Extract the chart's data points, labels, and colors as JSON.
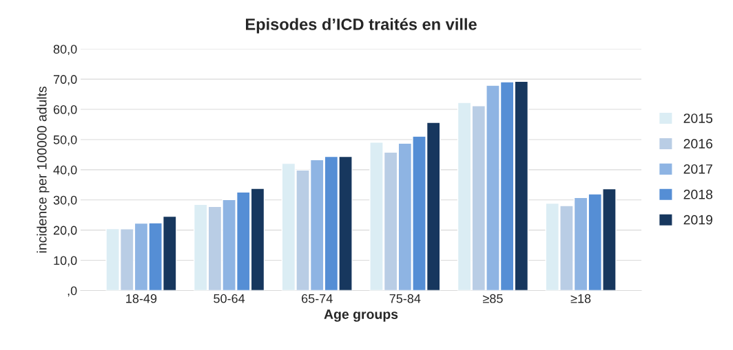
{
  "chart_data": {
    "type": "bar",
    "title": "Episodes d’ICD traités en ville",
    "xlabel": "Age groups",
    "ylabel": "incidence per 100000 adults",
    "categories": [
      "18-49",
      "50-64",
      "65-74",
      "75-84",
      "≥85",
      "≥18"
    ],
    "series": [
      {
        "name": "2015",
        "color": "#dbedf4",
        "values": [
          20.5,
          28.5,
          42.1,
          49.1,
          62.3,
          28.9
        ]
      },
      {
        "name": "2016",
        "color": "#b9cde5",
        "values": [
          20.4,
          27.8,
          39.9,
          45.8,
          61.2,
          28.1
        ]
      },
      {
        "name": "2017",
        "color": "#8eb4e3",
        "values": [
          22.3,
          30.1,
          43.3,
          48.8,
          68.0,
          30.8
        ]
      },
      {
        "name": "2018",
        "color": "#558ed5",
        "values": [
          22.4,
          32.6,
          44.4,
          51.1,
          69.1,
          32.0
        ]
      },
      {
        "name": "2019",
        "color": "#17375e",
        "values": [
          24.6,
          33.8,
          44.4,
          55.7,
          69.3,
          33.7
        ]
      }
    ],
    "ylim": [
      0,
      80
    ],
    "yticks": [
      {
        "value": 0,
        "label": ",0"
      },
      {
        "value": 10,
        "label": "10,0"
      },
      {
        "value": 20,
        "label": "20,0"
      },
      {
        "value": 30,
        "label": "30,0"
      },
      {
        "value": 40,
        "label": "40,0"
      },
      {
        "value": 50,
        "label": "50,0"
      },
      {
        "value": 60,
        "label": "60,0"
      },
      {
        "value": 70,
        "label": "70,0"
      },
      {
        "value": 80,
        "label": "80,0"
      }
    ],
    "grid": "y",
    "legend": "right"
  }
}
